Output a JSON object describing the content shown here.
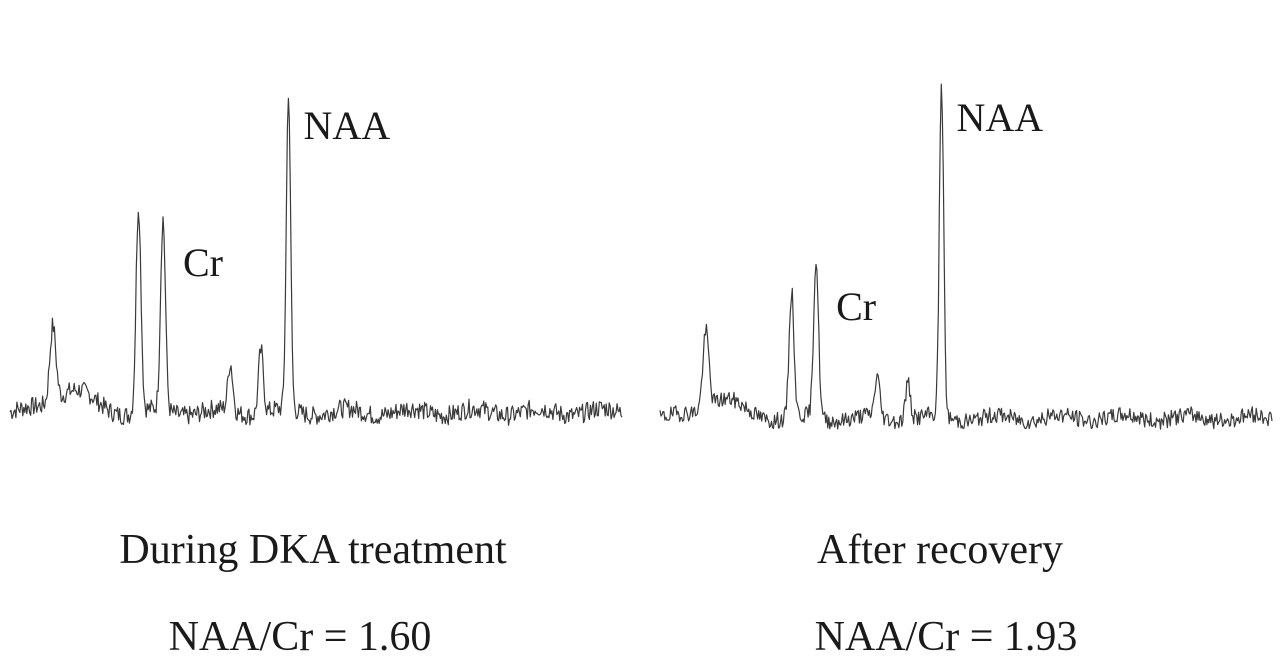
{
  "chart_data": [
    {
      "type": "line",
      "title": "During DKA treatment",
      "ratio_text": "NAA/Cr = 1.60",
      "peak_labels": [
        {
          "text": "Cr",
          "peak": "Cr"
        },
        {
          "text": "NAA",
          "peak": "NAA"
        }
      ],
      "peaks": [
        {
          "name": "",
          "position": 0.07,
          "height": 0.24,
          "width": 0.005
        },
        {
          "name": "",
          "position": 0.21,
          "height": 0.65,
          "width": 0.004
        },
        {
          "name": "Cr",
          "position": 0.25,
          "height": 0.6,
          "width": 0.004
        },
        {
          "name": "",
          "position": 0.36,
          "height": 0.15,
          "width": 0.004
        },
        {
          "name": "",
          "position": 0.41,
          "height": 0.2,
          "width": 0.004
        },
        {
          "name": "NAA",
          "position": 0.455,
          "height": 1.0,
          "width": 0.0035
        }
      ],
      "ratio": 1.6
    },
    {
      "type": "line",
      "title": "After recovery",
      "ratio_text": "NAA/Cr = 1.93",
      "peak_labels": [
        {
          "text": "Cr",
          "peak": "Cr"
        },
        {
          "text": "NAA",
          "peak": "NAA"
        }
      ],
      "peaks": [
        {
          "name": "",
          "position": 0.075,
          "height": 0.28,
          "width": 0.005
        },
        {
          "name": "",
          "position": 0.215,
          "height": 0.46,
          "width": 0.004
        },
        {
          "name": "Cr",
          "position": 0.255,
          "height": 0.58,
          "width": 0.004
        },
        {
          "name": "",
          "position": 0.355,
          "height": 0.15,
          "width": 0.004
        },
        {
          "name": "",
          "position": 0.405,
          "height": 0.14,
          "width": 0.004
        },
        {
          "name": "NAA",
          "position": 0.46,
          "height": 1.22,
          "width": 0.0035
        }
      ],
      "ratio": 1.93
    }
  ]
}
